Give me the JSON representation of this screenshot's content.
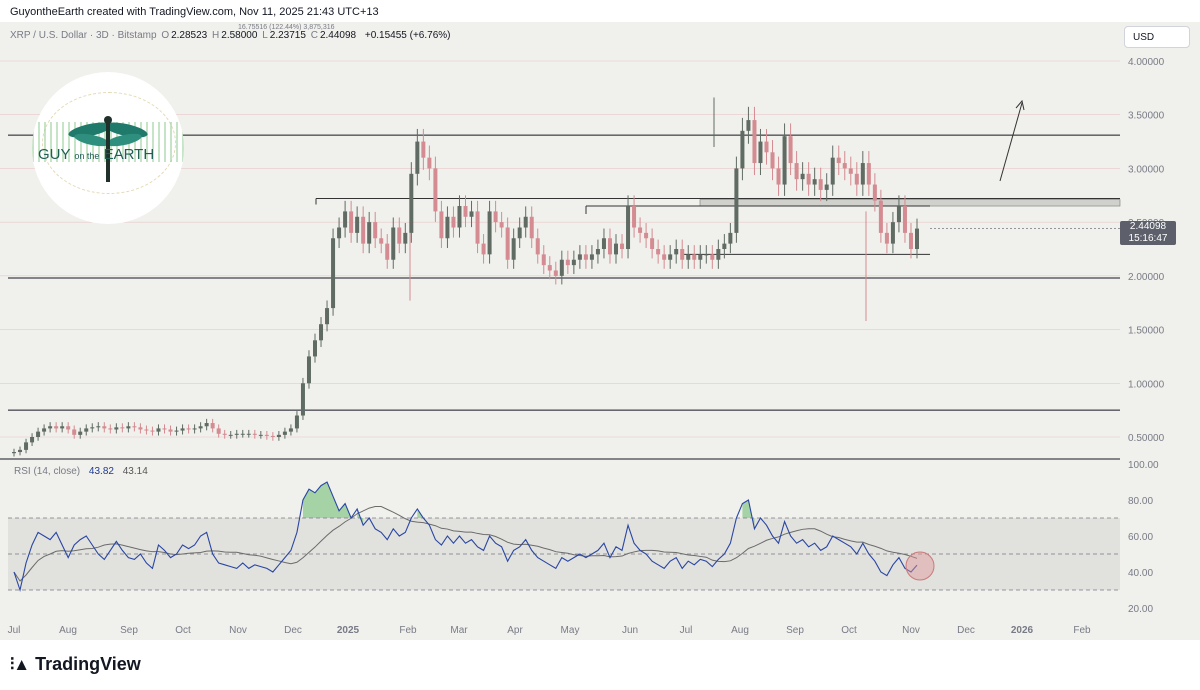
{
  "credit": "GuyontheEarth created with TradingView.com, Nov 11, 2025 21:43 UTC+13",
  "symbol_line": {
    "symbol": "XRP / U.S. Dollar · 3D · Bitstamp",
    "o_label": "O",
    "o": "2.28523",
    "h_label": "H",
    "h": "2.58000",
    "l_label": "L",
    "l": "2.23715",
    "c_label": "C",
    "c": "2.44098",
    "change": "+0.15455 (+6.76%)",
    "overlay_tiny": "16.75516 (122.44%) 3,875,316"
  },
  "currency_button": "USD",
  "current_price": {
    "price": "2.44098",
    "countdown": "15:16:47"
  },
  "logo": {
    "word1": "GUY",
    "word2": "on the",
    "word3": "EARTH"
  },
  "rsi": {
    "label": "RSI (14, close)",
    "value1": "43.82",
    "value2": "43.14"
  },
  "footer": {
    "brand": "TradingView"
  },
  "colors": {
    "up": "#5f6b63",
    "down": "#d48b91",
    "rsi_line": "#2946a3",
    "rsi_ma": "#6b6b6b",
    "rsi_fill": "#4caf50"
  },
  "chart_data": [
    {
      "type": "candlestick",
      "price_ticks": [
        "4.00000",
        "3.50000",
        "3.00000",
        "2.50000",
        "2.00000",
        "1.50000",
        "1.00000",
        "0.50000"
      ],
      "x_tick_labels": [
        "Jul",
        "Aug",
        "Sep",
        "Oct",
        "Nov",
        "Dec",
        "2025",
        "Feb",
        "Mar",
        "Apr",
        "May",
        "Jun",
        "Jul",
        "Aug",
        "Sep",
        "Oct",
        "Nov",
        "Dec",
        "2026",
        "Feb"
      ],
      "ylim": [
        0.32,
        4.2
      ],
      "horizontal_levels": [
        3.31,
        1.98,
        0.75
      ],
      "ranges": [
        [
          2.71,
          2.65
        ]
      ],
      "channel_lines": [
        2.72,
        2.65,
        2.2
      ],
      "closes": [
        0.36,
        0.38,
        0.45,
        0.5,
        0.55,
        0.58,
        0.6,
        0.58,
        0.6,
        0.57,
        0.52,
        0.55,
        0.58,
        0.59,
        0.6,
        0.58,
        0.57,
        0.59,
        0.58,
        0.6,
        0.59,
        0.57,
        0.56,
        0.55,
        0.58,
        0.57,
        0.55,
        0.56,
        0.58,
        0.57,
        0.58,
        0.6,
        0.63,
        0.58,
        0.53,
        0.52,
        0.52,
        0.53,
        0.53,
        0.53,
        0.52,
        0.52,
        0.51,
        0.5,
        0.52,
        0.55,
        0.58,
        0.7,
        1.0,
        1.25,
        1.4,
        1.55,
        1.7,
        2.35,
        2.45,
        2.6,
        2.4,
        2.55,
        2.3,
        2.5,
        2.35,
        2.3,
        2.15,
        2.45,
        2.3,
        2.4,
        2.95,
        3.25,
        3.1,
        3.0,
        2.6,
        2.35,
        2.55,
        2.45,
        2.65,
        2.55,
        2.6,
        2.3,
        2.2,
        2.6,
        2.5,
        2.45,
        2.15,
        2.35,
        2.45,
        2.55,
        2.35,
        2.2,
        2.1,
        2.05,
        2.0,
        2.15,
        2.1,
        2.15,
        2.2,
        2.15,
        2.2,
        2.25,
        2.35,
        2.2,
        2.3,
        2.25,
        2.65,
        2.45,
        2.4,
        2.35,
        2.25,
        2.2,
        2.15,
        2.2,
        2.25,
        2.15,
        2.2,
        2.15,
        2.2,
        2.2,
        2.15,
        2.25,
        2.3,
        2.4,
        3.0,
        3.35,
        3.45,
        3.05,
        3.25,
        3.15,
        3.0,
        2.85,
        3.3,
        3.05,
        2.9,
        2.95,
        2.85,
        2.9,
        2.8,
        2.85,
        3.1,
        3.05,
        3.0,
        2.95,
        2.85,
        3.05,
        2.85,
        2.7,
        2.4,
        2.3,
        2.5,
        2.65,
        2.4,
        2.25,
        2.44
      ],
      "rsi": [
        40,
        30,
        45,
        55,
        62,
        60,
        58,
        62,
        55,
        48,
        55,
        58,
        60,
        55,
        50,
        47,
        52,
        57,
        52,
        48,
        47,
        50,
        45,
        42,
        55,
        52,
        48,
        50,
        55,
        53,
        55,
        60,
        62,
        50,
        45,
        44,
        43,
        42,
        45,
        42,
        44,
        43,
        42,
        40,
        44,
        48,
        52,
        62,
        80,
        86,
        84,
        88,
        90,
        82,
        74,
        78,
        70,
        75,
        66,
        70,
        64,
        62,
        58,
        64,
        60,
        62,
        70,
        75,
        70,
        66,
        58,
        55,
        60,
        56,
        60,
        56,
        58,
        54,
        52,
        60,
        56,
        54,
        46,
        52,
        54,
        58,
        52,
        48,
        46,
        44,
        42,
        48,
        46,
        48,
        50,
        48,
        50,
        52,
        56,
        48,
        54,
        52,
        66,
        56,
        52,
        50,
        46,
        44,
        42,
        46,
        48,
        42,
        46,
        44,
        47,
        46,
        43,
        47,
        50,
        56,
        70,
        78,
        80,
        64,
        70,
        66,
        60,
        56,
        68,
        60,
        56,
        58,
        54,
        56,
        52,
        54,
        60,
        58,
        56,
        54,
        50,
        56,
        50,
        46,
        40,
        38,
        44,
        48,
        42,
        40,
        43.82
      ],
      "rsi_ticks": [
        "100.00",
        "80.00",
        "60.00",
        "40.00",
        "20.00"
      ],
      "rsi_levels": [
        70,
        50,
        30
      ]
    }
  ]
}
